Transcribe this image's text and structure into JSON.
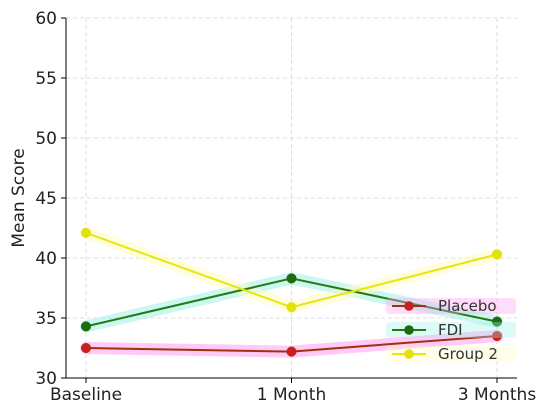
{
  "chart_data": {
    "type": "line",
    "categories": [
      "Baseline",
      "1 Month",
      "3 Months"
    ],
    "series": [
      {
        "name": "Placebo",
        "values": [
          32.5,
          32.2,
          33.5
        ],
        "color": "#a0300e",
        "marker_color": "#c8201c",
        "glow": "#ff9ef0"
      },
      {
        "name": "FDI",
        "values": [
          34.3,
          38.3,
          34.7
        ],
        "color": "#267a12",
        "marker_color": "#1b6c0c",
        "glow": "#9ff0e6"
      },
      {
        "name": "Group 2",
        "values": [
          42.1,
          35.9,
          40.3
        ],
        "color": "#e6e614",
        "marker_color": "#e2e20b",
        "glow": "#fffcc0"
      }
    ],
    "xlabel": "",
    "ylabel": "Mean Score",
    "ylim": [
      30,
      60
    ],
    "yticks": [
      30,
      35,
      40,
      45,
      50,
      55,
      60
    ],
    "grid": true,
    "legend_position": "lower-right"
  }
}
